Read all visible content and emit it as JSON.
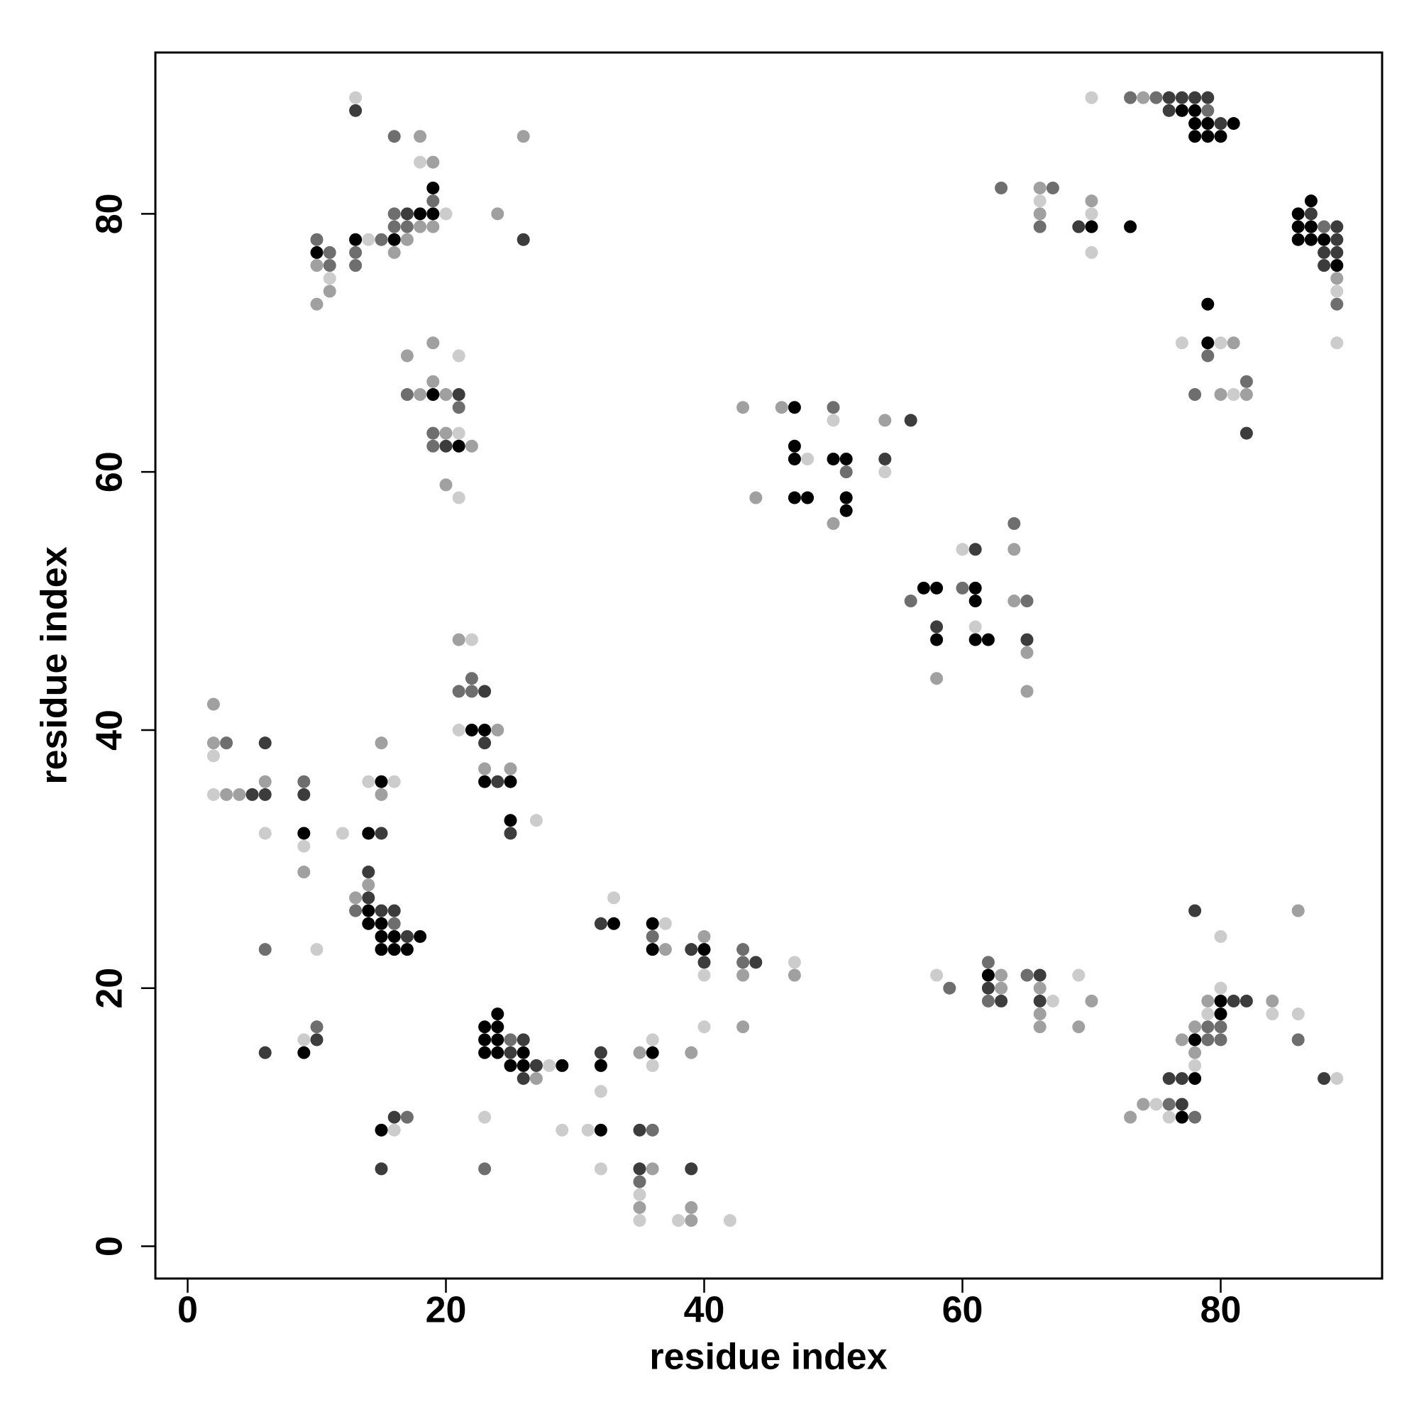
{
  "chart_data": {
    "type": "scatter",
    "xlabel": "residue index",
    "ylabel": "residue index",
    "xlim": [
      -2.5,
      92.5
    ],
    "ylim": [
      -2.5,
      92.5
    ],
    "xticks": [
      0,
      20,
      40,
      60,
      80
    ],
    "yticks": [
      0,
      20,
      40,
      60,
      80
    ],
    "grid": false,
    "series": [
      {
        "color": "#cccccc",
        "x": [
          13,
          14,
          20,
          18,
          11,
          21,
          21,
          21,
          22,
          21,
          27,
          2,
          14,
          16,
          2,
          6,
          12,
          9,
          10,
          9,
          16,
          28,
          23,
          32,
          31,
          29,
          32,
          33,
          37,
          36,
          36,
          35,
          35,
          38,
          40,
          40,
          47,
          42,
          50,
          48,
          54,
          60,
          61,
          58,
          67,
          69,
          80,
          80,
          79,
          84,
          86,
          78,
          89,
          75,
          76,
          70,
          66,
          70,
          70,
          89,
          89,
          77,
          80,
          81
        ],
        "values": [
          89,
          78,
          80,
          84,
          75,
          69,
          63,
          58,
          47,
          40,
          33,
          38,
          36,
          36,
          35,
          32,
          32,
          31,
          23,
          16,
          9,
          14,
          10,
          12,
          9,
          9,
          6,
          27,
          25,
          16,
          14,
          4,
          2,
          2,
          21,
          17,
          22,
          2,
          64,
          61,
          60,
          54,
          48,
          21,
          19,
          21,
          24,
          20,
          18,
          18,
          18,
          14,
          13,
          11,
          10,
          89,
          81,
          80,
          77,
          74,
          70,
          70,
          70,
          66
        ]
      },
      {
        "color": "#a0a0a0",
        "x": [
          18,
          26,
          19,
          18,
          19,
          24,
          17,
          16,
          10,
          11,
          10,
          19,
          17,
          19,
          18,
          20,
          20,
          22,
          20,
          21,
          24,
          23,
          25,
          2,
          2,
          15,
          6,
          3,
          4,
          15,
          9,
          13,
          14,
          27,
          37,
          35,
          36,
          35,
          39,
          39,
          39,
          40,
          43,
          43,
          47,
          43,
          46,
          54,
          44,
          50,
          64,
          64,
          65,
          58,
          65,
          63,
          63,
          66,
          66,
          66,
          70,
          69,
          79,
          84,
          78,
          77,
          78,
          86,
          74,
          73,
          74,
          66,
          66,
          70,
          89,
          81,
          80,
          82
        ],
        "values": [
          86,
          86,
          84,
          79,
          79,
          80,
          78,
          77,
          76,
          74,
          73,
          70,
          69,
          67,
          66,
          66,
          63,
          62,
          59,
          47,
          40,
          37,
          37,
          42,
          39,
          39,
          36,
          35,
          35,
          35,
          29,
          27,
          28,
          13,
          23,
          15,
          6,
          3,
          2,
          3,
          15,
          24,
          21,
          17,
          21,
          65,
          65,
          64,
          58,
          56,
          54,
          50,
          46,
          44,
          43,
          21,
          20,
          20,
          18,
          17,
          19,
          17,
          19,
          19,
          17,
          16,
          15,
          26,
          11,
          10,
          89,
          82,
          80,
          81,
          75,
          70,
          66,
          66
        ]
      },
      {
        "color": "#6e6e6e",
        "x": [
          16,
          19,
          16,
          16,
          17,
          10,
          15,
          11,
          13,
          11,
          13,
          17,
          21,
          19,
          19,
          22,
          21,
          22,
          3,
          9,
          13,
          16,
          6,
          10,
          17,
          23,
          25,
          36,
          36,
          35,
          43,
          43,
          50,
          51,
          64,
          60,
          56,
          65,
          59,
          62,
          62,
          65,
          79,
          80,
          79,
          80,
          86,
          76,
          78,
          73,
          75,
          79,
          63,
          67,
          66,
          88,
          89,
          79,
          78,
          82
        ],
        "values": [
          86,
          81,
          80,
          79,
          79,
          78,
          78,
          77,
          77,
          76,
          76,
          66,
          65,
          63,
          62,
          44,
          43,
          43,
          39,
          36,
          26,
          25,
          23,
          17,
          10,
          6,
          16,
          24,
          9,
          5,
          23,
          22,
          65,
          60,
          56,
          51,
          50,
          50,
          20,
          22,
          19,
          21,
          17,
          17,
          16,
          16,
          16,
          11,
          10,
          89,
          89,
          88,
          82,
          82,
          79,
          79,
          73,
          69,
          66,
          67
        ]
      },
      {
        "color": "#3c3c3c",
        "x": [
          13,
          17,
          26,
          21,
          20,
          23,
          23,
          24,
          25,
          6,
          5,
          6,
          9,
          15,
          14,
          14,
          15,
          16,
          17,
          10,
          6,
          16,
          15,
          26,
          25,
          27,
          26,
          32,
          32,
          35,
          35,
          39,
          39,
          40,
          44,
          56,
          54,
          61,
          58,
          65,
          62,
          63,
          66,
          66,
          78,
          81,
          82,
          76,
          77,
          88,
          77,
          76,
          77,
          78,
          79,
          76,
          80,
          69,
          87,
          89,
          89,
          88,
          89,
          88,
          82
        ],
        "values": [
          88,
          80,
          78,
          66,
          62,
          43,
          39,
          36,
          32,
          39,
          35,
          35,
          35,
          32,
          29,
          27,
          26,
          26,
          24,
          16,
          15,
          10,
          6,
          16,
          15,
          14,
          13,
          15,
          25,
          9,
          6,
          6,
          23,
          22,
          22,
          64,
          61,
          54,
          48,
          47,
          20,
          19,
          21,
          19,
          26,
          19,
          19,
          13,
          13,
          13,
          11,
          89,
          89,
          89,
          89,
          88,
          87,
          79,
          80,
          79,
          78,
          77,
          77,
          76,
          63
        ]
      },
      {
        "color": "#000000",
        "x": [
          19,
          18,
          19,
          13,
          16,
          10,
          19,
          21,
          22,
          23,
          23,
          25,
          25,
          15,
          9,
          14,
          14,
          14,
          15,
          15,
          16,
          18,
          15,
          16,
          17,
          9,
          15,
          24,
          23,
          24,
          23,
          24,
          23,
          24,
          26,
          25,
          26,
          29,
          32,
          32,
          33,
          36,
          36,
          36,
          40,
          47,
          47,
          47,
          50,
          51,
          47,
          48,
          51,
          51,
          57,
          58,
          61,
          61,
          58,
          61,
          62,
          62,
          80,
          80,
          78,
          78,
          77,
          77,
          78,
          78,
          79,
          81,
          78,
          79,
          80,
          70,
          73,
          87,
          86,
          86,
          87,
          86,
          87,
          88,
          89,
          79,
          79
        ],
        "values": [
          82,
          80,
          80,
          78,
          78,
          77,
          66,
          62,
          40,
          40,
          36,
          36,
          33,
          36,
          32,
          32,
          26,
          25,
          25,
          24,
          24,
          24,
          23,
          23,
          23,
          15,
          9,
          18,
          17,
          17,
          16,
          16,
          15,
          15,
          15,
          14,
          14,
          14,
          14,
          9,
          25,
          25,
          23,
          15,
          23,
          65,
          62,
          61,
          61,
          61,
          58,
          58,
          58,
          57,
          51,
          51,
          51,
          50,
          47,
          47,
          47,
          21,
          19,
          18,
          16,
          13,
          10,
          88,
          88,
          87,
          87,
          87,
          86,
          86,
          86,
          79,
          79,
          81,
          80,
          79,
          79,
          78,
          78,
          78,
          76,
          73,
          70
        ]
      }
    ]
  }
}
